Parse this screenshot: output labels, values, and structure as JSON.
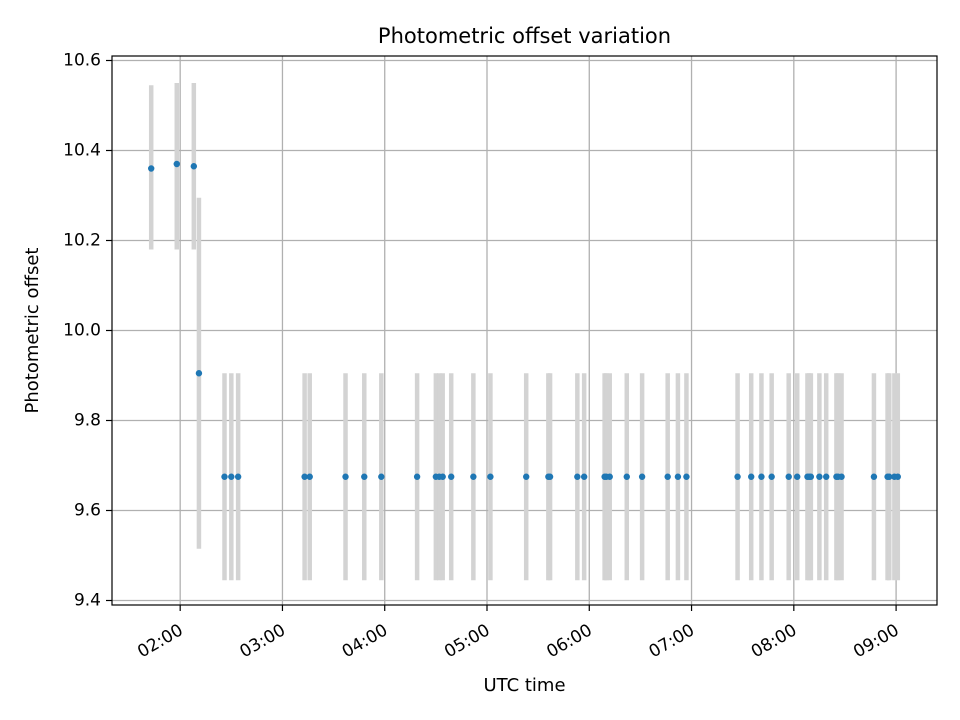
{
  "chart_data": {
    "type": "scatter",
    "title": "Photometric offset variation",
    "xlabel": "UTC time",
    "ylabel": "Photometric offset",
    "x_unit": "UTC hh:mm",
    "xlim": [
      "01:20",
      "09:24"
    ],
    "ylim": [
      9.39,
      10.61
    ],
    "x_ticks": [
      "02:00",
      "03:00",
      "04:00",
      "05:00",
      "06:00",
      "07:00",
      "08:00",
      "09:00"
    ],
    "y_ticks": [
      9.4,
      9.6,
      9.8,
      10.0,
      10.2,
      10.4,
      10.6
    ],
    "y_tick_labels": [
      "9.4",
      "9.6",
      "9.8",
      "10.0",
      "10.2",
      "10.4",
      "10.6"
    ],
    "grid": true,
    "colors": {
      "points": "#1f77b4",
      "error_bars": "#d3d3d3",
      "grid": "#b0b0b0"
    },
    "series": [
      {
        "x": [
          "01:43",
          "01:58",
          "02:08",
          "02:11",
          "02:26",
          "02:30",
          "02:34",
          "03:13",
          "03:16",
          "03:37",
          "03:48",
          "03:58",
          "04:19",
          "04:30",
          "04:32",
          "04:34",
          "04:39",
          "04:52",
          "05:02",
          "05:23",
          "05:36",
          "05:37",
          "05:53",
          "05:57",
          "06:09",
          "06:10",
          "06:12",
          "06:22",
          "06:31",
          "06:46",
          "06:52",
          "06:57",
          "07:27",
          "07:35",
          "07:41",
          "07:47",
          "07:57",
          "08:02",
          "08:08",
          "08:09",
          "08:10",
          "08:15",
          "08:19",
          "08:25",
          "08:26",
          "08:28",
          "08:47",
          "08:55",
          "08:56",
          "08:59",
          "09:01"
        ],
        "y": [
          10.36,
          10.37,
          10.365,
          9.905,
          9.675,
          9.675,
          9.675,
          9.675,
          9.675,
          9.675,
          9.675,
          9.675,
          9.675,
          9.675,
          9.675,
          9.675,
          9.675,
          9.675,
          9.675,
          9.675,
          9.675,
          9.675,
          9.675,
          9.675,
          9.675,
          9.675,
          9.675,
          9.675,
          9.675,
          9.675,
          9.675,
          9.675,
          9.675,
          9.675,
          9.675,
          9.675,
          9.675,
          9.675,
          9.675,
          9.675,
          9.675,
          9.675,
          9.675,
          9.675,
          9.675,
          9.675,
          9.675,
          9.675,
          9.675,
          9.675,
          9.675
        ],
        "err_low": [
          10.18,
          10.18,
          10.18,
          9.515,
          9.445,
          9.445,
          9.445,
          9.445,
          9.445,
          9.445,
          9.445,
          9.445,
          9.445,
          9.445,
          9.445,
          9.445,
          9.445,
          9.445,
          9.445,
          9.445,
          9.445,
          9.445,
          9.445,
          9.445,
          9.445,
          9.445,
          9.445,
          9.445,
          9.445,
          9.445,
          9.445,
          9.445,
          9.445,
          9.445,
          9.445,
          9.445,
          9.445,
          9.445,
          9.445,
          9.445,
          9.445,
          9.445,
          9.445,
          9.445,
          9.445,
          9.445,
          9.445,
          9.445,
          9.445,
          9.445,
          9.445
        ],
        "err_high": [
          10.545,
          10.55,
          10.55,
          10.295,
          9.905,
          9.905,
          9.905,
          9.905,
          9.905,
          9.905,
          9.905,
          9.905,
          9.905,
          9.905,
          9.905,
          9.905,
          9.905,
          9.905,
          9.905,
          9.905,
          9.905,
          9.905,
          9.905,
          9.905,
          9.905,
          9.905,
          9.905,
          9.905,
          9.905,
          9.905,
          9.905,
          9.905,
          9.905,
          9.905,
          9.905,
          9.905,
          9.905,
          9.905,
          9.905,
          9.905,
          9.905,
          9.905,
          9.905,
          9.905,
          9.905,
          9.905,
          9.905,
          9.905,
          9.905,
          9.905,
          9.905
        ]
      }
    ]
  }
}
